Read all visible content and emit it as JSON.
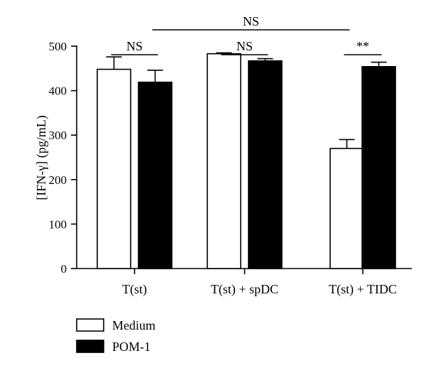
{
  "chart_data": {
    "type": "bar",
    "ylabel": "[IFN-γ] (pg/mL)",
    "ylim": [
      0,
      500
    ],
    "yticks": [
      0,
      100,
      200,
      300,
      400,
      500
    ],
    "categories": [
      "T(st)",
      "T(st) + spDC",
      "T(st) + TIDC"
    ],
    "series": [
      {
        "name": "Medium",
        "values": [
          448,
          483,
          270
        ],
        "errors": [
          28,
          2,
          20
        ],
        "color": "#ffffff"
      },
      {
        "name": "POM-1",
        "values": [
          419,
          467,
          454
        ],
        "errors": [
          27,
          5,
          10
        ],
        "color": "#000000"
      }
    ],
    "significance": [
      {
        "label": "NS",
        "from": [
          0,
          0
        ],
        "to": [
          0,
          1
        ]
      },
      {
        "label": "NS",
        "from": [
          1,
          0
        ],
        "to": [
          1,
          1
        ]
      },
      {
        "label": "**",
        "from": [
          2,
          0
        ],
        "to": [
          2,
          1
        ]
      },
      {
        "label": "NS",
        "from": [
          0,
          1
        ],
        "to": [
          2,
          0
        ]
      }
    ],
    "legend_position": "bottom-left",
    "grid": false
  }
}
